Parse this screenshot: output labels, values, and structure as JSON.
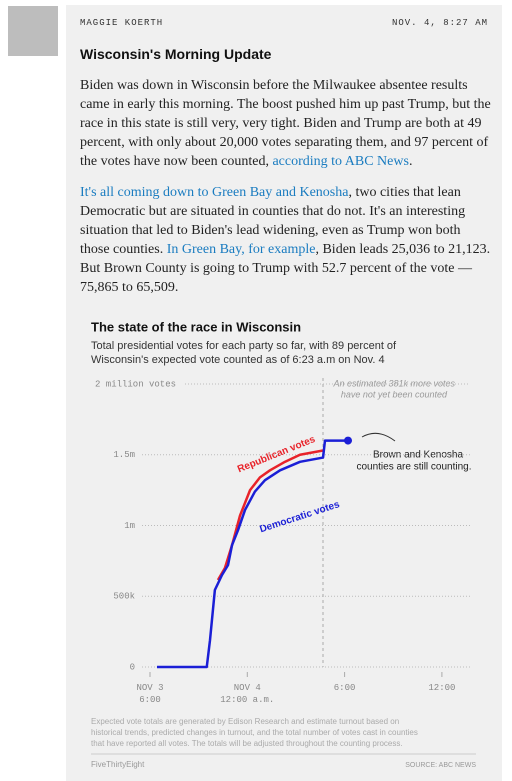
{
  "post": {
    "author": "MAGGIE KOERTH",
    "timestamp": "NOV. 4, 8:27 AM",
    "title": "Wisconsin's Morning Update",
    "paragraphs": [
      [
        {
          "text": "Biden was down in Wisconsin before the Milwaukee absentee results came in early this morning. The boost pushed him up past Trump, but the race in this state is still very, very tight. Biden and Trump are both at 49 percent, with only about 20,000 votes separating them, and 97 percent of the votes have now been counted, "
        },
        {
          "text": "according to ABC News",
          "link": true
        },
        {
          "text": "."
        }
      ],
      [
        {
          "text": "It's all coming down to Green Bay and Kenosha",
          "link": true
        },
        {
          "text": ", two cities that lean Democratic but are situated in counties that do not. It's an interesting situation that led to Biden's lead widening, even as Trump won both those counties. "
        },
        {
          "text": "In Green Bay, for example",
          "link": true
        },
        {
          "text": ", Biden leads 25,036 to 21,123. But Brown County is going to Trump with 52.7 percent of the vote — 75,865 to 65,509."
        }
      ]
    ]
  },
  "chart_data": {
    "type": "line",
    "title": "The state of the race in Wisconsin",
    "subtitle": [
      "Total presidential votes for each party so far, with 89 percent of",
      "Wisconsin's expected vote counted as of 6:23 a.m on Nov. 4"
    ],
    "xlim": [
      0,
      18.8
    ],
    "ylim": [
      0,
      2000000
    ],
    "xticks": [
      {
        "value": 0,
        "label": "NOV 3\n6:00"
      },
      {
        "value": 6,
        "label": "NOV 4\n12:00 a.m."
      },
      {
        "value": 12,
        "label": "6:00"
      },
      {
        "value": 18,
        "label": "12:00"
      }
    ],
    "yticks": [
      0,
      {
        "value": 500000,
        "label": "500k"
      },
      {
        "value": 1000000,
        "label": "1m"
      },
      {
        "value": 1500000,
        "label": "1.5m"
      },
      {
        "value": 2000000,
        "label": "2 million votes"
      }
    ],
    "grid": true,
    "series": [
      {
        "name": "Republican votes",
        "color": "#e8232a",
        "x": [
          4.19,
          4.62,
          5.06,
          5.55,
          6.17,
          6.78,
          7.4,
          8.32,
          9.25,
          10.67
        ],
        "values": [
          615000,
          700000,
          862000,
          1070000,
          1250000,
          1340000,
          1390000,
          1450000,
          1500000,
          1530000
        ]
      },
      {
        "name": "Democratic votes",
        "color": "#1b1fd6",
        "x": [
          0.43,
          3.5,
          3.7,
          4.0,
          4.44,
          4.81,
          5.06,
          5.43,
          5.86,
          6.47,
          7.09,
          8.02,
          9.25,
          10.67,
          10.79,
          12.21
        ],
        "values": [
          0,
          0,
          190000,
          544000,
          650000,
          720000,
          862000,
          968000,
          1110000,
          1240000,
          1320000,
          1390000,
          1450000,
          1480000,
          1600000,
          1600000
        ]
      }
    ],
    "annotations": [
      [
        "An estimated 381k more votes",
        "have not yet been counted"
      ],
      [
        "Brown and Kenosha",
        "counties are still counting."
      ]
    ],
    "footnote": [
      "Expected vote totals are generated by Edison Research and estimate turnout based on",
      "historical trends, predicted changes in turnout, and the total number of votes cast in counties",
      "that have reported all votes. The totals will be adjusted throughout the counting process."
    ],
    "brand": "FiveThirtyEight",
    "source": "SOURCE: ABC NEWS"
  }
}
